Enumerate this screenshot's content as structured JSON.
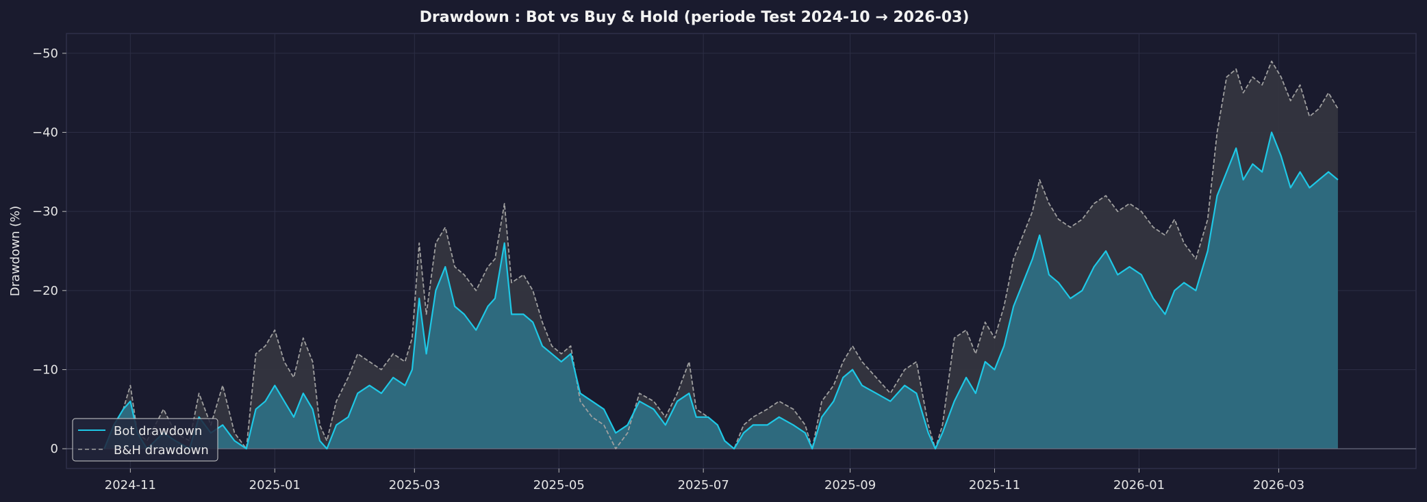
{
  "chart_data": {
    "type": "line",
    "title": "Drawdown : Bot vs Buy & Hold (periode Test 2024-10 → 2026-03)",
    "xlabel": "",
    "ylabel": "Drawdown (%)",
    "x_range": [
      "2024-10-05",
      "2026-04-28"
    ],
    "ylim": [
      2.5,
      -52.5
    ],
    "y_inverted": true,
    "y_ticks": [
      0,
      -10,
      -20,
      -30,
      -40,
      -50
    ],
    "y_tick_labels": [
      "0",
      "−10",
      "−20",
      "−30",
      "−40",
      "−50"
    ],
    "x_ticks": [
      "2024-11-01",
      "2025-01-01",
      "2025-03-01",
      "2025-05-01",
      "2025-07-01",
      "2025-09-01",
      "2025-11-01",
      "2026-01-01",
      "2026-03-01"
    ],
    "x_tick_labels": [
      "2024-11",
      "2025-01",
      "2025-03",
      "2025-05",
      "2025-07",
      "2025-09",
      "2025-11",
      "2026-01",
      "2026-03"
    ],
    "grid": true,
    "legend_position": "bottom-left",
    "series": [
      {
        "name": "Bot drawdown",
        "style": "solid",
        "color": "#1ec8e6",
        "fill": "#2e6a7e",
        "points": [
          [
            "2024-10-21",
            0
          ],
          [
            "2024-10-25",
            -3
          ],
          [
            "2024-10-29",
            -5
          ],
          [
            "2024-11-01",
            -6
          ],
          [
            "2024-11-04",
            -2
          ],
          [
            "2024-11-08",
            0
          ],
          [
            "2024-11-15",
            -2
          ],
          [
            "2024-11-20",
            -1
          ],
          [
            "2024-11-26",
            0
          ],
          [
            "2024-11-30",
            -4
          ],
          [
            "2024-12-05",
            -2
          ],
          [
            "2024-12-10",
            -3
          ],
          [
            "2024-12-15",
            -1
          ],
          [
            "2024-12-20",
            0
          ],
          [
            "2024-12-24",
            -5
          ],
          [
            "2024-12-28",
            -6
          ],
          [
            "2025-01-01",
            -8
          ],
          [
            "2025-01-05",
            -6
          ],
          [
            "2025-01-09",
            -4
          ],
          [
            "2025-01-13",
            -7
          ],
          [
            "2025-01-17",
            -5
          ],
          [
            "2025-01-20",
            -1
          ],
          [
            "2025-01-23",
            0
          ],
          [
            "2025-01-27",
            -3
          ],
          [
            "2025-02-01",
            -4
          ],
          [
            "2025-02-05",
            -7
          ],
          [
            "2025-02-10",
            -8
          ],
          [
            "2025-02-15",
            -7
          ],
          [
            "2025-02-20",
            -9
          ],
          [
            "2025-02-25",
            -8
          ],
          [
            "2025-02-28",
            -10
          ],
          [
            "2025-03-03",
            -19
          ],
          [
            "2025-03-06",
            -12
          ],
          [
            "2025-03-10",
            -20
          ],
          [
            "2025-03-14",
            -23
          ],
          [
            "2025-03-18",
            -18
          ],
          [
            "2025-03-22",
            -17
          ],
          [
            "2025-03-27",
            -15
          ],
          [
            "2025-04-01",
            -18
          ],
          [
            "2025-04-04",
            -19
          ],
          [
            "2025-04-08",
            -26
          ],
          [
            "2025-04-11",
            -17
          ],
          [
            "2025-04-16",
            -17
          ],
          [
            "2025-04-20",
            -16
          ],
          [
            "2025-04-24",
            -13
          ],
          [
            "2025-04-28",
            -12
          ],
          [
            "2025-05-02",
            -11
          ],
          [
            "2025-05-06",
            -12
          ],
          [
            "2025-05-10",
            -7
          ],
          [
            "2025-05-15",
            -6
          ],
          [
            "2025-05-20",
            -5
          ],
          [
            "2025-05-25",
            -2
          ],
          [
            "2025-05-30",
            -3
          ],
          [
            "2025-06-04",
            -6
          ],
          [
            "2025-06-10",
            -5
          ],
          [
            "2025-06-15",
            -3
          ],
          [
            "2025-06-20",
            -6
          ],
          [
            "2025-06-25",
            -7
          ],
          [
            "2025-06-28",
            -4
          ],
          [
            "2025-07-03",
            -4
          ],
          [
            "2025-07-07",
            -3
          ],
          [
            "2025-07-10",
            -1
          ],
          [
            "2025-07-14",
            0
          ],
          [
            "2025-07-18",
            -2
          ],
          [
            "2025-07-22",
            -3
          ],
          [
            "2025-07-28",
            -3
          ],
          [
            "2025-08-02",
            -4
          ],
          [
            "2025-08-08",
            -3
          ],
          [
            "2025-08-13",
            -2
          ],
          [
            "2025-08-16",
            0
          ],
          [
            "2025-08-20",
            -4
          ],
          [
            "2025-08-25",
            -6
          ],
          [
            "2025-08-29",
            -9
          ],
          [
            "2025-09-02",
            -10
          ],
          [
            "2025-09-06",
            -8
          ],
          [
            "2025-09-12",
            -7
          ],
          [
            "2025-09-18",
            -6
          ],
          [
            "2025-09-24",
            -8
          ],
          [
            "2025-09-29",
            -7
          ],
          [
            "2025-10-04",
            -2
          ],
          [
            "2025-10-07",
            0
          ],
          [
            "2025-10-10",
            -2
          ],
          [
            "2025-10-15",
            -6
          ],
          [
            "2025-10-20",
            -9
          ],
          [
            "2025-10-24",
            -7
          ],
          [
            "2025-10-28",
            -11
          ],
          [
            "2025-11-01",
            -10
          ],
          [
            "2025-11-05",
            -13
          ],
          [
            "2025-11-09",
            -18
          ],
          [
            "2025-11-13",
            -21
          ],
          [
            "2025-11-17",
            -24
          ],
          [
            "2025-11-20",
            -27
          ],
          [
            "2025-11-24",
            -22
          ],
          [
            "2025-11-28",
            -21
          ],
          [
            "2025-12-03",
            -19
          ],
          [
            "2025-12-08",
            -20
          ],
          [
            "2025-12-13",
            -23
          ],
          [
            "2025-12-18",
            -25
          ],
          [
            "2025-12-23",
            -22
          ],
          [
            "2025-12-28",
            -23
          ],
          [
            "2026-01-02",
            -22
          ],
          [
            "2026-01-07",
            -19
          ],
          [
            "2026-01-12",
            -17
          ],
          [
            "2026-01-16",
            -20
          ],
          [
            "2026-01-20",
            -21
          ],
          [
            "2026-01-25",
            -20
          ],
          [
            "2026-01-30",
            -25
          ],
          [
            "2026-02-03",
            -32
          ],
          [
            "2026-02-07",
            -35
          ],
          [
            "2026-02-11",
            -38
          ],
          [
            "2026-02-14",
            -34
          ],
          [
            "2026-02-18",
            -36
          ],
          [
            "2026-02-22",
            -35
          ],
          [
            "2026-02-26",
            -40
          ],
          [
            "2026-03-02",
            -37
          ],
          [
            "2026-03-06",
            -33
          ],
          [
            "2026-03-10",
            -35
          ],
          [
            "2026-03-14",
            -33
          ],
          [
            "2026-03-18",
            -34
          ],
          [
            "2026-03-22",
            -35
          ],
          [
            "2026-03-26",
            -34
          ]
        ]
      },
      {
        "name": "B&H drawdown",
        "style": "dashed",
        "color": "#a0a0a0",
        "fill": "#34353f",
        "points": [
          [
            "2024-10-21",
            0
          ],
          [
            "2024-10-25",
            -3
          ],
          [
            "2024-10-29",
            -5
          ],
          [
            "2024-11-01",
            -8
          ],
          [
            "2024-11-04",
            -2
          ],
          [
            "2024-11-08",
            -1
          ],
          [
            "2024-11-15",
            -5
          ],
          [
            "2024-11-20",
            -2
          ],
          [
            "2024-11-26",
            -1
          ],
          [
            "2024-11-30",
            -7
          ],
          [
            "2024-12-05",
            -3
          ],
          [
            "2024-12-10",
            -8
          ],
          [
            "2024-12-15",
            -2
          ],
          [
            "2024-12-20",
            0
          ],
          [
            "2024-12-24",
            -12
          ],
          [
            "2024-12-28",
            -13
          ],
          [
            "2025-01-01",
            -15
          ],
          [
            "2025-01-05",
            -11
          ],
          [
            "2025-01-09",
            -9
          ],
          [
            "2025-01-13",
            -14
          ],
          [
            "2025-01-17",
            -11
          ],
          [
            "2025-01-20",
            -3
          ],
          [
            "2025-01-23",
            -1
          ],
          [
            "2025-01-27",
            -6
          ],
          [
            "2025-02-01",
            -9
          ],
          [
            "2025-02-05",
            -12
          ],
          [
            "2025-02-10",
            -11
          ],
          [
            "2025-02-15",
            -10
          ],
          [
            "2025-02-20",
            -12
          ],
          [
            "2025-02-25",
            -11
          ],
          [
            "2025-02-28",
            -14
          ],
          [
            "2025-03-03",
            -26
          ],
          [
            "2025-03-06",
            -17
          ],
          [
            "2025-03-10",
            -26
          ],
          [
            "2025-03-14",
            -28
          ],
          [
            "2025-03-18",
            -23
          ],
          [
            "2025-03-22",
            -22
          ],
          [
            "2025-03-27",
            -20
          ],
          [
            "2025-04-01",
            -23
          ],
          [
            "2025-04-04",
            -24
          ],
          [
            "2025-04-08",
            -31
          ],
          [
            "2025-04-11",
            -21
          ],
          [
            "2025-04-16",
            -22
          ],
          [
            "2025-04-20",
            -20
          ],
          [
            "2025-04-24",
            -16
          ],
          [
            "2025-04-28",
            -13
          ],
          [
            "2025-05-02",
            -12
          ],
          [
            "2025-05-06",
            -13
          ],
          [
            "2025-05-10",
            -6
          ],
          [
            "2025-05-15",
            -4
          ],
          [
            "2025-05-20",
            -3
          ],
          [
            "2025-05-25",
            0
          ],
          [
            "2025-05-30",
            -2
          ],
          [
            "2025-06-04",
            -7
          ],
          [
            "2025-06-10",
            -6
          ],
          [
            "2025-06-15",
            -4
          ],
          [
            "2025-06-20",
            -7
          ],
          [
            "2025-06-25",
            -11
          ],
          [
            "2025-06-28",
            -5
          ],
          [
            "2025-07-03",
            -4
          ],
          [
            "2025-07-07",
            -3
          ],
          [
            "2025-07-10",
            -1
          ],
          [
            "2025-07-14",
            0
          ],
          [
            "2025-07-18",
            -3
          ],
          [
            "2025-07-22",
            -4
          ],
          [
            "2025-07-28",
            -5
          ],
          [
            "2025-08-02",
            -6
          ],
          [
            "2025-08-08",
            -5
          ],
          [
            "2025-08-13",
            -3
          ],
          [
            "2025-08-16",
            0
          ],
          [
            "2025-08-20",
            -6
          ],
          [
            "2025-08-25",
            -8
          ],
          [
            "2025-08-29",
            -11
          ],
          [
            "2025-09-02",
            -13
          ],
          [
            "2025-09-06",
            -11
          ],
          [
            "2025-09-12",
            -9
          ],
          [
            "2025-09-18",
            -7
          ],
          [
            "2025-09-24",
            -10
          ],
          [
            "2025-09-29",
            -11
          ],
          [
            "2025-10-04",
            -3
          ],
          [
            "2025-10-07",
            0
          ],
          [
            "2025-10-10",
            -3
          ],
          [
            "2025-10-15",
            -14
          ],
          [
            "2025-10-20",
            -15
          ],
          [
            "2025-10-24",
            -12
          ],
          [
            "2025-10-28",
            -16
          ],
          [
            "2025-11-01",
            -14
          ],
          [
            "2025-11-05",
            -18
          ],
          [
            "2025-11-09",
            -24
          ],
          [
            "2025-11-13",
            -27
          ],
          [
            "2025-11-17",
            -30
          ],
          [
            "2025-11-20",
            -34
          ],
          [
            "2025-11-24",
            -31
          ],
          [
            "2025-11-28",
            -29
          ],
          [
            "2025-12-03",
            -28
          ],
          [
            "2025-12-08",
            -29
          ],
          [
            "2025-12-13",
            -31
          ],
          [
            "2025-12-18",
            -32
          ],
          [
            "2025-12-23",
            -30
          ],
          [
            "2025-12-28",
            -31
          ],
          [
            "2026-01-02",
            -30
          ],
          [
            "2026-01-07",
            -28
          ],
          [
            "2026-01-12",
            -27
          ],
          [
            "2026-01-16",
            -29
          ],
          [
            "2026-01-20",
            -26
          ],
          [
            "2026-01-25",
            -24
          ],
          [
            "2026-01-30",
            -29
          ],
          [
            "2026-02-03",
            -40
          ],
          [
            "2026-02-07",
            -47
          ],
          [
            "2026-02-11",
            -48
          ],
          [
            "2026-02-14",
            -45
          ],
          [
            "2026-02-18",
            -47
          ],
          [
            "2026-02-22",
            -46
          ],
          [
            "2026-02-26",
            -49
          ],
          [
            "2026-03-02",
            -47
          ],
          [
            "2026-03-06",
            -44
          ],
          [
            "2026-03-10",
            -46
          ],
          [
            "2026-03-14",
            -42
          ],
          [
            "2026-03-18",
            -43
          ],
          [
            "2026-03-22",
            -45
          ],
          [
            "2026-03-26",
            -43
          ]
        ]
      }
    ]
  }
}
